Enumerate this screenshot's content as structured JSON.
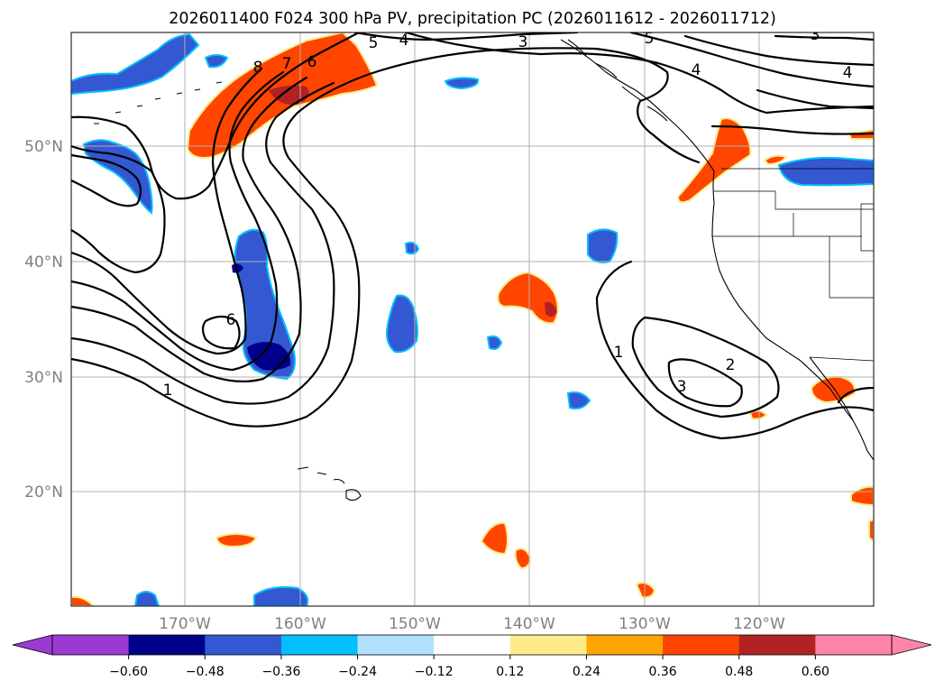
{
  "title": "2026011400 F024 300 hPa PV, precipitation PC (2026011612 - 2026011712)",
  "map": {
    "lat_labels": [
      "50°N",
      "40°N",
      "30°N",
      "20°N"
    ],
    "lon_labels": [
      "170°W",
      "160°W",
      "150°W",
      "140°W",
      "130°W",
      "120°W"
    ]
  },
  "contour_labels": [
    "8",
    "7",
    "6",
    "5",
    "4",
    "3",
    "5",
    "4",
    "4",
    "3",
    "6",
    "1",
    "1",
    "2",
    "3"
  ],
  "colorbar": {
    "tick_labels": [
      "−0.60",
      "−0.48",
      "−0.36",
      "−0.24",
      "−0.12",
      "0.12",
      "0.24",
      "0.36",
      "0.48",
      "0.60"
    ],
    "under_color": "#9b3ad1",
    "colors": [
      "#00008b",
      "#3358d1",
      "#00bfff",
      "#b0e2ff",
      "#ffffff",
      "#ffeb8a",
      "#ffa500",
      "#ff4500",
      "#b22222"
    ],
    "over_color": "#ff85a8"
  },
  "colors": {
    "neg_strong": "#00008b",
    "neg": "#3358d1",
    "neg_light": "#00bfff",
    "pos_light": "#ffeb8a",
    "pos": "#ff4500",
    "pos_strong": "#b22222"
  }
}
